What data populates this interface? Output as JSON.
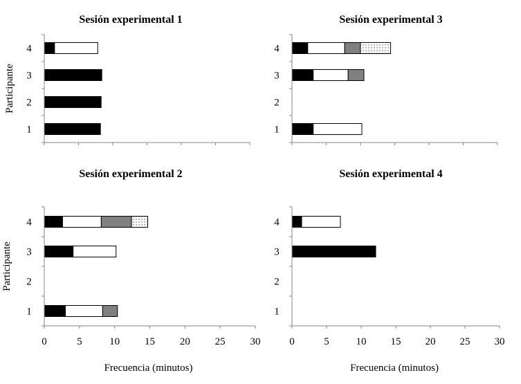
{
  "chart_data": [
    {
      "type": "bar",
      "orientation": "horizontal",
      "stacked": true,
      "title": "Sesión experimental 1",
      "ylabel": "Participante",
      "xlabel": "",
      "categories": [
        "1",
        "2",
        "3",
        "4"
      ],
      "xlim": [
        0,
        30
      ],
      "x_tick_labels": [],
      "series": [
        {
          "fill": "solid-black",
          "values": [
            8.2,
            8.3,
            8.4,
            1.5
          ]
        },
        {
          "fill": "white",
          "values": [
            0,
            0,
            0,
            6.3
          ]
        },
        {
          "fill": "gray",
          "values": [
            0,
            0,
            0,
            0
          ]
        },
        {
          "fill": "dotted",
          "values": [
            0,
            0,
            0,
            0
          ]
        }
      ]
    },
    {
      "type": "bar",
      "orientation": "horizontal",
      "stacked": true,
      "title": "Sesión experimental 3",
      "ylabel": "",
      "xlabel": "",
      "categories": [
        "1",
        "2",
        "3",
        "4"
      ],
      "xlim": [
        0,
        30
      ],
      "x_tick_labels": [],
      "series": [
        {
          "fill": "solid-black",
          "values": [
            3.1,
            0,
            3.1,
            2.3
          ]
        },
        {
          "fill": "white",
          "values": [
            7.1,
            0,
            5.1,
            5.4
          ]
        },
        {
          "fill": "gray",
          "values": [
            0,
            0,
            2.3,
            2.3
          ]
        },
        {
          "fill": "dotted",
          "values": [
            0,
            0,
            0,
            4.4
          ]
        }
      ]
    },
    {
      "type": "bar",
      "orientation": "horizontal",
      "stacked": true,
      "title": "Sesión experimental 2",
      "ylabel": "Participante",
      "xlabel": "Frecuencia (minutos)",
      "categories": [
        "1",
        "2",
        "3",
        "4"
      ],
      "xlim": [
        0,
        30
      ],
      "x_tick_labels": [
        "0",
        "5",
        "10",
        "15",
        "20",
        "25",
        "30"
      ],
      "series": [
        {
          "fill": "solid-black",
          "values": [
            3.0,
            0,
            4.1,
            2.6
          ]
        },
        {
          "fill": "white",
          "values": [
            5.3,
            0,
            6.1,
            5.5
          ]
        },
        {
          "fill": "gray",
          "values": [
            2.1,
            0,
            0,
            4.3
          ]
        },
        {
          "fill": "dotted",
          "values": [
            0,
            0,
            0,
            2.3
          ]
        }
      ]
    },
    {
      "type": "bar",
      "orientation": "horizontal",
      "stacked": true,
      "title": "Sesión experimental 4",
      "ylabel": "",
      "xlabel": "Frecuencia (minutos)",
      "categories": [
        "1",
        "2",
        "3",
        "4"
      ],
      "xlim": [
        0,
        30
      ],
      "x_tick_labels": [
        "0",
        "5",
        "10",
        "15",
        "20",
        "25",
        "30"
      ],
      "series": [
        {
          "fill": "solid-black",
          "values": [
            0,
            0,
            12.1,
            1.4
          ]
        },
        {
          "fill": "white",
          "values": [
            0,
            0,
            0,
            5.6
          ]
        },
        {
          "fill": "gray",
          "values": [
            0,
            0,
            0,
            0
          ]
        },
        {
          "fill": "dotted",
          "values": [
            0,
            0,
            0,
            0
          ]
        }
      ]
    }
  ],
  "colors": {
    "solid-black": "#000000",
    "white": "#ffffff",
    "gray": "#808080",
    "dotted": "#ffffff",
    "axis": "#868686"
  }
}
